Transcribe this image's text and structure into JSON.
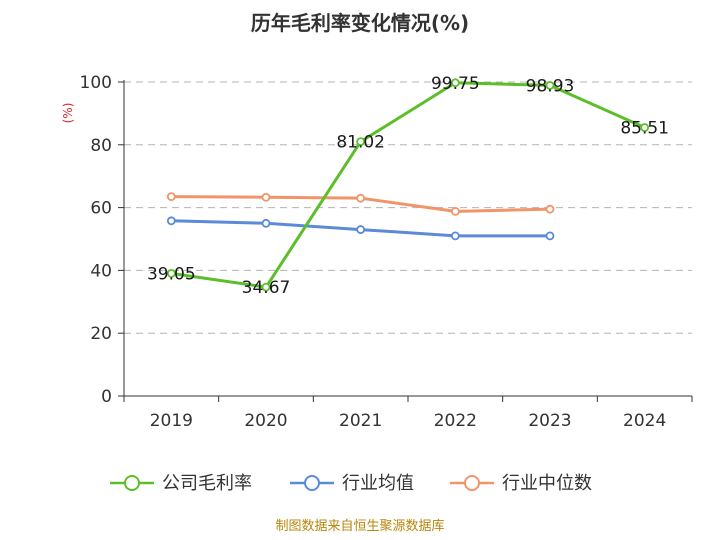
{
  "chart_data": {
    "type": "line",
    "title": "历年毛利率变化情况(%)",
    "ylabel": "(%)",
    "categories": [
      "2019",
      "2020",
      "2021",
      "2022",
      "2023",
      "2024"
    ],
    "ylim": [
      0,
      100
    ],
    "yticks": [
      0,
      20,
      40,
      60,
      80,
      100
    ],
    "grid": "horizontal dashed",
    "legend_position": "bottom",
    "series": [
      {
        "name": "公司毛利率",
        "color": "#5cbf2a",
        "values": [
          39.05,
          34.67,
          81.02,
          99.75,
          98.93,
          85.51
        ],
        "labels": [
          "39.05",
          "34.67",
          "81.02",
          "99.75",
          "98.93",
          "85.51"
        ]
      },
      {
        "name": "行业均值",
        "color": "#5b8ad8",
        "values": [
          55.8,
          55.0,
          53.0,
          51.0,
          51.0,
          null
        ]
      },
      {
        "name": "行业中位数",
        "color": "#f0956a",
        "values": [
          63.5,
          63.3,
          63.0,
          58.8,
          59.5,
          null
        ]
      }
    ]
  },
  "source": "制图数据来自恒生聚源数据库"
}
